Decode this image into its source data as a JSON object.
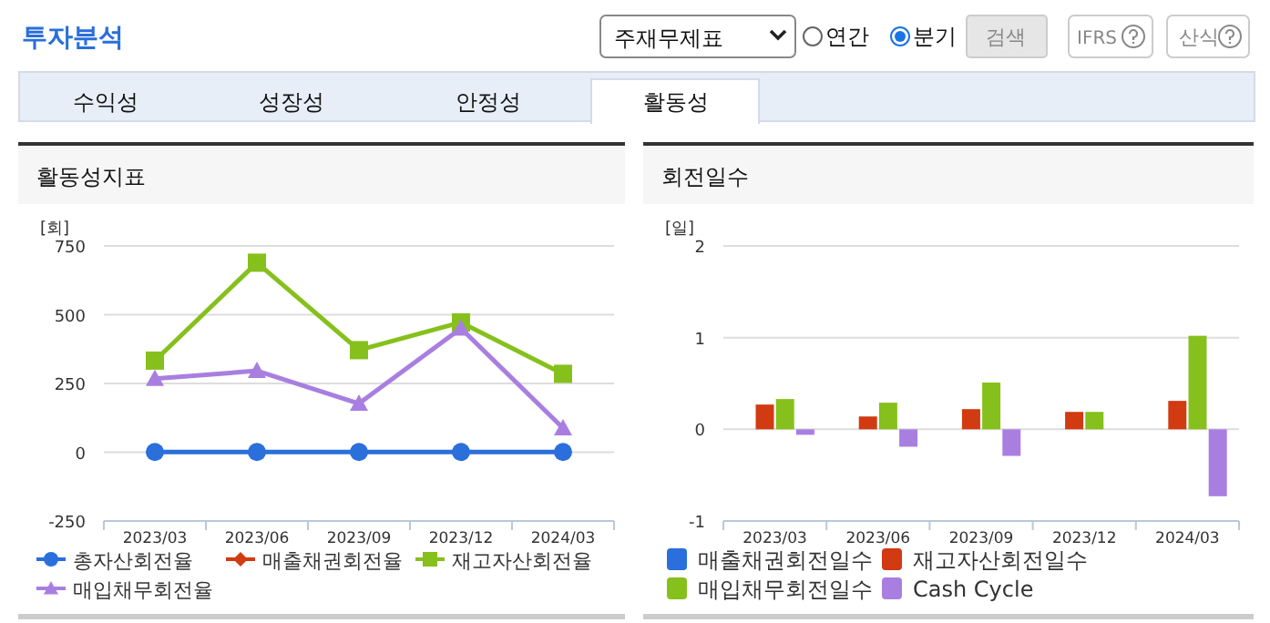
{
  "chart_data": [
    {
      "type": "other",
      "title": "투자분석",
      "annotations": [
        "주재무제표",
        "연간",
        "분기",
        "검색",
        "IFRS",
        "산식",
        "수익성",
        "성장성",
        "안정성",
        "활동성"
      ]
    },
    {
      "type": "line",
      "title": "활동성지표",
      "ylabel": "[회]",
      "categories": [
        "2023/03",
        "2023/06",
        "2023/09",
        "2023/12",
        "2024/03"
      ],
      "ylim": [
        -250,
        750
      ],
      "yticks": [
        -250,
        0,
        250,
        500,
        750
      ],
      "grid": "y",
      "legend": "bottom",
      "line_style": "solid",
      "series": [
        {
          "name": "총자산회전율",
          "color": "#2a6fdb",
          "marker": "circle",
          "values": [
            1,
            1,
            1,
            1,
            1
          ]
        },
        {
          "name": "매출채권회전율",
          "color": "#d23a12",
          "marker": "diamond",
          "values": [
            null,
            null,
            null,
            null,
            null
          ]
        },
        {
          "name": "재고자산회전율",
          "color": "#86c01c",
          "marker": "square",
          "values": [
            333,
            689,
            371,
            472,
            285
          ]
        },
        {
          "name": "매입채무회전율",
          "color": "#a87fe0",
          "marker": "triangle",
          "values": [
            267,
            296,
            177,
            450,
            88
          ]
        }
      ]
    },
    {
      "type": "bar",
      "title": "회전일수",
      "ylabel": "[일]",
      "categories": [
        "2023/03",
        "2023/06",
        "2023/09",
        "2023/12",
        "2024/03"
      ],
      "ylim": [
        -1,
        2
      ],
      "yticks": [
        -1,
        0,
        1,
        2
      ],
      "grid": "y",
      "legend": "bottom",
      "series": [
        {
          "name": "매출채권회전일수",
          "color": "#2a6fdb",
          "values": [
            null,
            null,
            null,
            null,
            null
          ]
        },
        {
          "name": "재고자산회전일수",
          "color": "#d23a12",
          "values": [
            0.27,
            0.14,
            0.22,
            0.19,
            0.31
          ]
        },
        {
          "name": "매입채무회전일수",
          "color": "#86c01c",
          "values": [
            0.33,
            0.29,
            0.51,
            0.19,
            1.02
          ]
        },
        {
          "name": "Cash Cycle",
          "color": "#a87fe0",
          "values": [
            -0.06,
            -0.19,
            -0.29,
            0,
            -0.73
          ]
        }
      ]
    }
  ]
}
